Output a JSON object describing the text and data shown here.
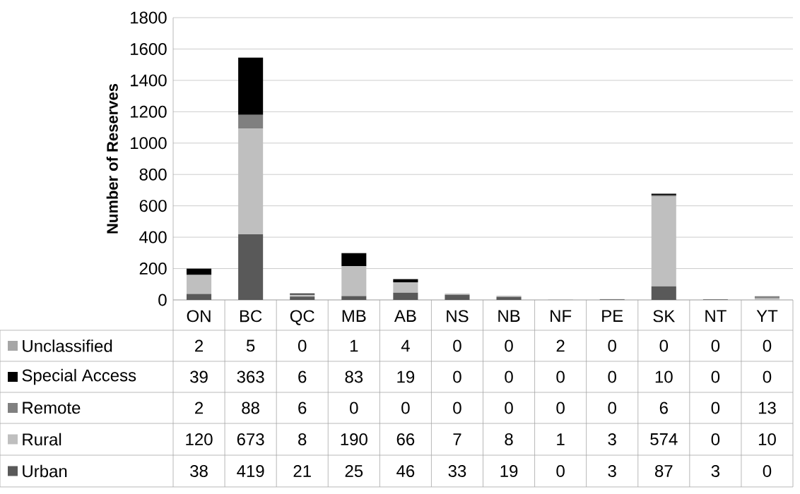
{
  "chart_data": {
    "type": "bar",
    "stacked": true,
    "ylabel": "Number of Reserves",
    "categories": [
      "ON",
      "BC",
      "QC",
      "MB",
      "AB",
      "NS",
      "NB",
      "NF",
      "PE",
      "SK",
      "NT",
      "YT"
    ],
    "series": [
      {
        "name": "Urban",
        "color": "#595959",
        "values": [
          38,
          419,
          21,
          25,
          46,
          33,
          19,
          0,
          3,
          87,
          3,
          0
        ]
      },
      {
        "name": "Rural",
        "color": "#bfbfbf",
        "values": [
          120,
          673,
          8,
          190,
          66,
          7,
          8,
          1,
          3,
          574,
          0,
          10
        ]
      },
      {
        "name": "Remote",
        "color": "#808080",
        "values": [
          2,
          88,
          6,
          0,
          0,
          0,
          0,
          0,
          0,
          6,
          0,
          13
        ]
      },
      {
        "name": "Special Access",
        "color": "#000000",
        "values": [
          39,
          363,
          6,
          83,
          19,
          0,
          0,
          0,
          0,
          10,
          0,
          0
        ]
      },
      {
        "name": "Unclassified",
        "color": "#a6a6a6",
        "values": [
          2,
          5,
          0,
          1,
          4,
          0,
          0,
          2,
          0,
          0,
          0,
          0
        ]
      }
    ],
    "ylim": [
      0,
      1800
    ],
    "yticks": [
      0,
      200,
      400,
      600,
      800,
      1000,
      1200,
      1400,
      1600,
      1800
    ],
    "grid": "y",
    "legend": "bottom",
    "data_labels": true
  }
}
